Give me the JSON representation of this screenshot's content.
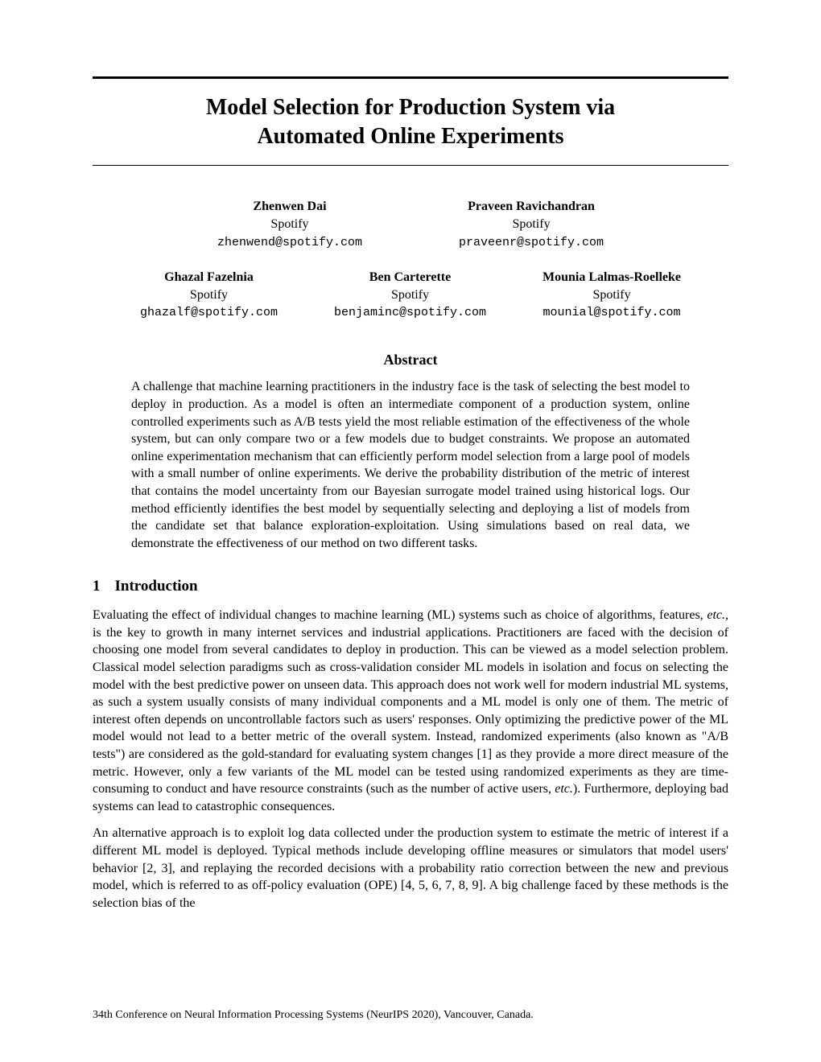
{
  "title_line1": "Model Selection for Production System via",
  "title_line2": "Automated Online Experiments",
  "authors_row1": [
    {
      "name": "Zhenwen Dai",
      "affil": "Spotify",
      "email": "zhenwend@spotify.com"
    },
    {
      "name": "Praveen Ravichandran",
      "affil": "Spotify",
      "email": "praveenr@spotify.com"
    }
  ],
  "authors_row2": [
    {
      "name": "Ghazal Fazelnia",
      "affil": "Spotify",
      "email": "ghazalf@spotify.com"
    },
    {
      "name": "Ben Carterette",
      "affil": "Spotify",
      "email": "benjaminc@spotify.com"
    },
    {
      "name": "Mounia Lalmas-Roelleke",
      "affil": "Spotify",
      "email": "mounial@spotify.com"
    }
  ],
  "abstract_heading": "Abstract",
  "abstract_text": "A challenge that machine learning practitioners in the industry face is the task of selecting the best model to deploy in production. As a model is often an intermediate component of a production system, online controlled experiments such as A/B tests yield the most reliable estimation of the effectiveness of the whole system, but can only compare two or a few models due to budget constraints. We propose an automated online experimentation mechanism that can efficiently perform model selection from a large pool of models with a small number of online experiments. We derive the probability distribution of the metric of interest that contains the model uncertainty from our Bayesian surrogate model trained using historical logs. Our method efficiently identifies the best model by sequentially selecting and deploying a list of models from the candidate set that balance exploration-exploitation. Using simulations based on real data, we demonstrate the effectiveness of our method on two different tasks.",
  "section1_number": "1",
  "section1_title": "Introduction",
  "para1_a": "Evaluating the effect of individual changes to machine learning (ML) systems such as choice of algorithms, features, ",
  "para1_etc": "etc.",
  "para1_b": ", is the key to growth in many internet services and industrial applications. Practitioners are faced with the decision of choosing one model from several candidates to deploy in production. This can be viewed as a model selection problem. Classical model selection paradigms such as cross-validation consider ML models in isolation and focus on selecting the model with the best predictive power on unseen data. This approach does not work well for modern industrial ML systems, as such a system usually consists of many individual components and a ML model is only one of them. The metric of interest often depends on uncontrollable factors such as users' responses. Only optimizing the predictive power of the ML model would not lead to a better metric of the overall system. Instead, randomized experiments (also known as \"A/B tests\") are considered as the gold-standard for evaluating system changes [1] as they provide a more direct measure of the metric. However, only a few variants of the ML model can be tested using randomized experiments as they are time-consuming to conduct and have resource constraints (such as the number of active users, ",
  "para1_etc2": "etc.",
  "para1_c": "). Furthermore, deploying bad systems can lead to catastrophic consequences.",
  "para2": "An alternative approach is to exploit log data collected under the production system to estimate the metric of interest if a different ML model is deployed. Typical methods include developing offline measures or simulators that model users' behavior [2, 3], and replaying the recorded decisions with a probability ratio correction between the new and previous model, which is referred to as off-policy evaluation (OPE) [4, 5, 6, 7, 8, 9]. A big challenge faced by these methods is the selection bias of the",
  "footer": "34th Conference on Neural Information Processing Systems (NeurIPS 2020), Vancouver, Canada."
}
